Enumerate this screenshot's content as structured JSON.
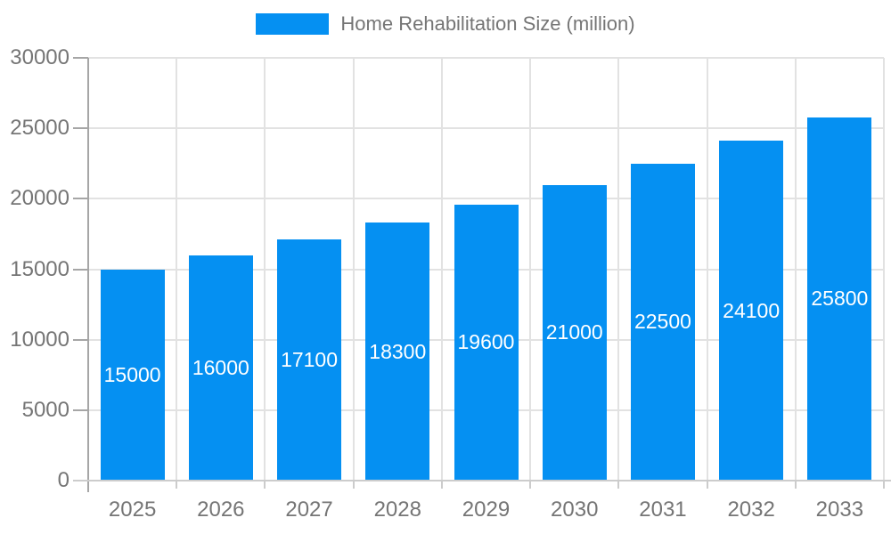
{
  "legend": {
    "label": "Home Rehabilitation Size (million)"
  },
  "chart_data": {
    "type": "bar",
    "title": "Home Rehabilitation Size (million)",
    "series_name": "Home Rehabilitation Size (million)",
    "categories": [
      "2025",
      "2026",
      "2027",
      "2028",
      "2029",
      "2030",
      "2031",
      "2032",
      "2033"
    ],
    "values": [
      15000,
      16000,
      17100,
      18300,
      19600,
      21000,
      22500,
      24100,
      25800
    ],
    "xlabel": "",
    "ylabel": "",
    "ylim": [
      0,
      30000
    ],
    "ytick_step": 5000,
    "yticks": [
      0,
      5000,
      10000,
      15000,
      20000,
      25000,
      30000
    ],
    "grid": true,
    "legend_position": "top",
    "value_labels": "inside-center"
  },
  "colors": {
    "bar": "#0590f2",
    "bar_label_text": "#ffffff",
    "axis_text": "#757575",
    "gridline": "#e2e2e2",
    "y_axis_line": "#a6a6a6",
    "x_axis_line": "#cccccc",
    "background": "#ffffff"
  }
}
